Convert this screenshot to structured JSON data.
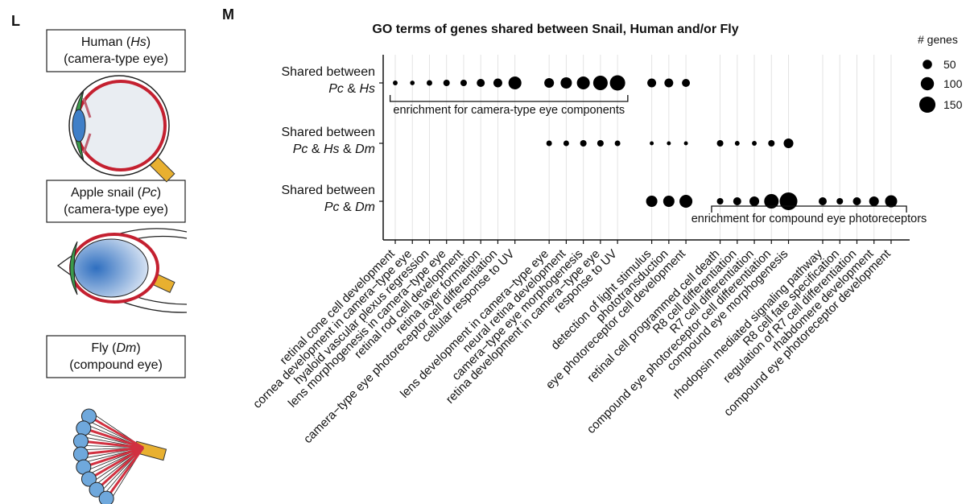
{
  "panel_l": {
    "label": "L",
    "eyes": [
      {
        "title": [
          "Human (",
          "Hs",
          ")"
        ],
        "subtitle": "(camera-type eye)"
      },
      {
        "title": [
          "Apple snail (",
          "Pc",
          ")"
        ],
        "subtitle": "(camera-type eye)"
      },
      {
        "title": [
          "Fly (",
          "Dm",
          ")"
        ],
        "subtitle": "(compound eye)"
      }
    ]
  },
  "chart_data": {
    "type": "dot",
    "panel_label": "M",
    "title": "GO terms of genes shared between Snail, Human and/or Fly",
    "categories": [
      "retinal cone cell development",
      "cornea development in camera−type eye",
      "hyaloid vascular plexus regression",
      "lens morphogenesis in camera−type eye",
      "retinal rod cell development",
      "retina layer formation",
      "camera−type eye photoreceptor cell differentiation",
      "cellular response to UV",
      null,
      "lens development in camera−type eye",
      "neural retina development",
      "camera−type eye morphogenesis",
      "retina development in camera−type eye",
      "response to UV",
      null,
      "detection of light stimulus",
      "phototransduction",
      "eye photoreceptor cell development",
      null,
      "retinal cell programmed cell death",
      "R8 cell differentiation",
      "R7 cell differentiation",
      "compound eye photoreceptor cell differentiation",
      "compound eye morphogenesis",
      null,
      "rhodopsin mediated signaling pathway",
      "R8 cell fate specification",
      "regulation of R7 cell differentiation",
      "rhabdomere development",
      "compound eye photoreceptor development"
    ],
    "rows": [
      {
        "label": [
          "Shared between",
          "Pc",
          " & ",
          "Hs"
        ],
        "sizes": [
          13,
          12,
          18,
          24,
          24,
          37,
          45,
          96,
          null,
          54,
          73,
          96,
          121,
          135,
          null,
          45,
          45,
          37,
          null,
          null,
          null,
          null,
          null,
          null,
          null,
          null,
          null,
          null,
          null,
          null
        ]
      },
      {
        "label": [
          "Shared between",
          "Pc",
          " & ",
          "Hs",
          " & ",
          "Dm"
        ],
        "sizes": [
          null,
          null,
          null,
          null,
          null,
          null,
          null,
          null,
          null,
          18,
          18,
          24,
          24,
          18,
          null,
          9,
          9,
          9,
          null,
          24,
          13,
          13,
          24,
          54,
          null,
          null,
          null,
          null,
          null,
          null
        ]
      },
      {
        "label": [
          "Shared between",
          "Pc",
          " & ",
          "Dm"
        ],
        "sizes": [
          null,
          null,
          null,
          null,
          null,
          null,
          null,
          null,
          null,
          null,
          null,
          null,
          null,
          null,
          null,
          73,
          73,
          96,
          null,
          24,
          37,
          54,
          121,
          180,
          null,
          37,
          24,
          37,
          54,
          84
        ]
      }
    ],
    "color": "#000000",
    "grid": true,
    "size_legend": {
      "title": "# genes",
      "values": [
        50,
        100,
        150
      ]
    },
    "annotations": [
      "enrichment for camera-type eye components",
      "enrichment for compound eye photoreceptors"
    ]
  }
}
